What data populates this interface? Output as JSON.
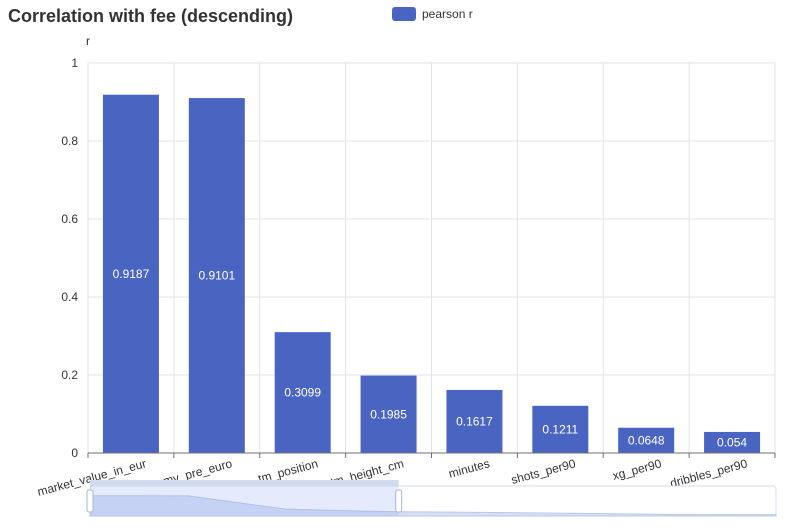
{
  "chart_data": {
    "type": "bar",
    "title": "Correlation with fee (descending)",
    "ylabel": "r",
    "xlabel": "",
    "ylim": [
      0,
      1
    ],
    "yticks": [
      0,
      0.2,
      0.4,
      0.6,
      0.8,
      1
    ],
    "categories": [
      "market_value_in_eur",
      "mv_pre_euro",
      "tm_position",
      "tm_height_cm",
      "minutes",
      "shots_per90",
      "xg_per90",
      "dribbles_per90"
    ],
    "series": [
      {
        "name": "pearson r",
        "values": [
          0.9187,
          0.9101,
          0.3099,
          0.1985,
          0.1617,
          0.1211,
          0.0648,
          0.054
        ],
        "color": "#4a65c1"
      }
    ],
    "legend_position": "top-center",
    "grid": true,
    "data_zoom": {
      "start_fraction": 0,
      "end_fraction": 0.45
    }
  }
}
